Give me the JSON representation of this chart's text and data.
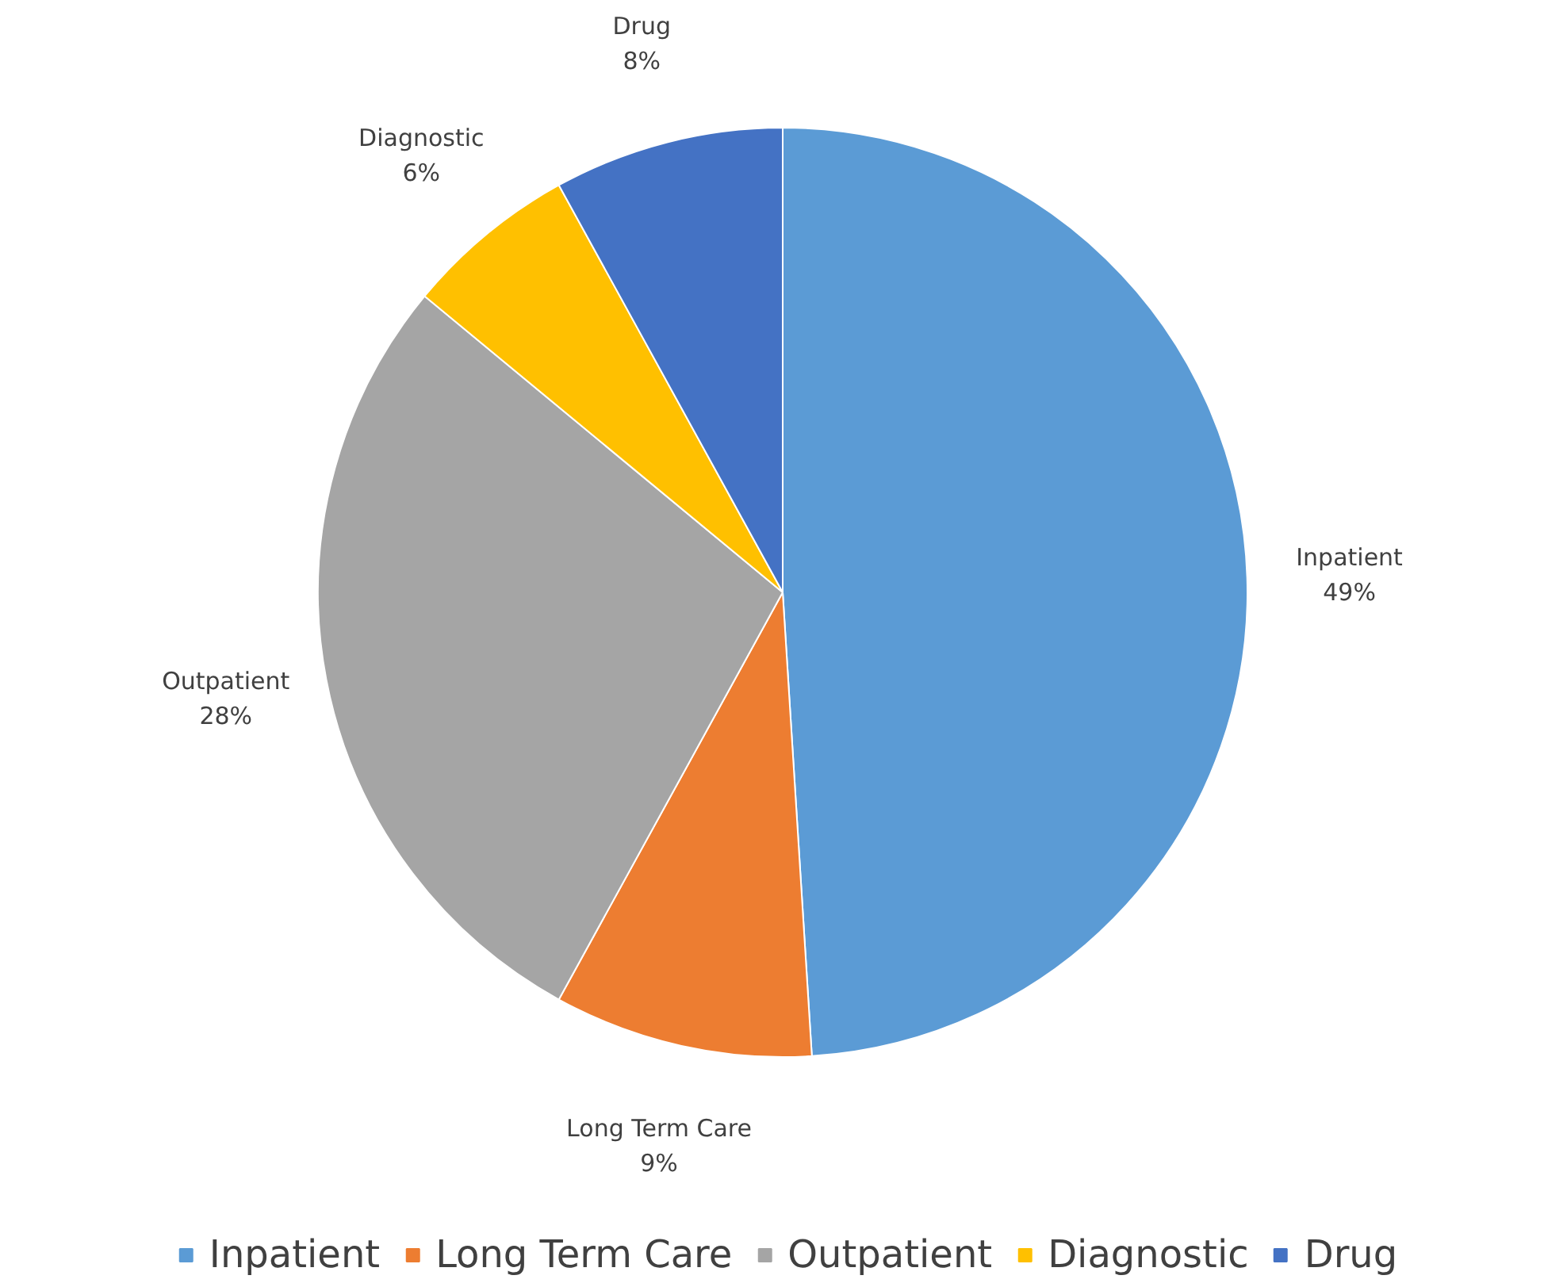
{
  "chart_data": {
    "type": "pie",
    "categories": [
      "Inpatient",
      "Long Term Care",
      "Outpatient",
      "Diagnostic",
      "Drug"
    ],
    "values": [
      49,
      9,
      28,
      6,
      8
    ],
    "colors": [
      "#5b9bd5",
      "#ed7d31",
      "#a5a5a5",
      "#ffc000",
      "#4472c4"
    ],
    "value_labels": [
      "49%",
      "9%",
      "28%",
      "6%",
      "8%"
    ],
    "legend": "bottom"
  }
}
